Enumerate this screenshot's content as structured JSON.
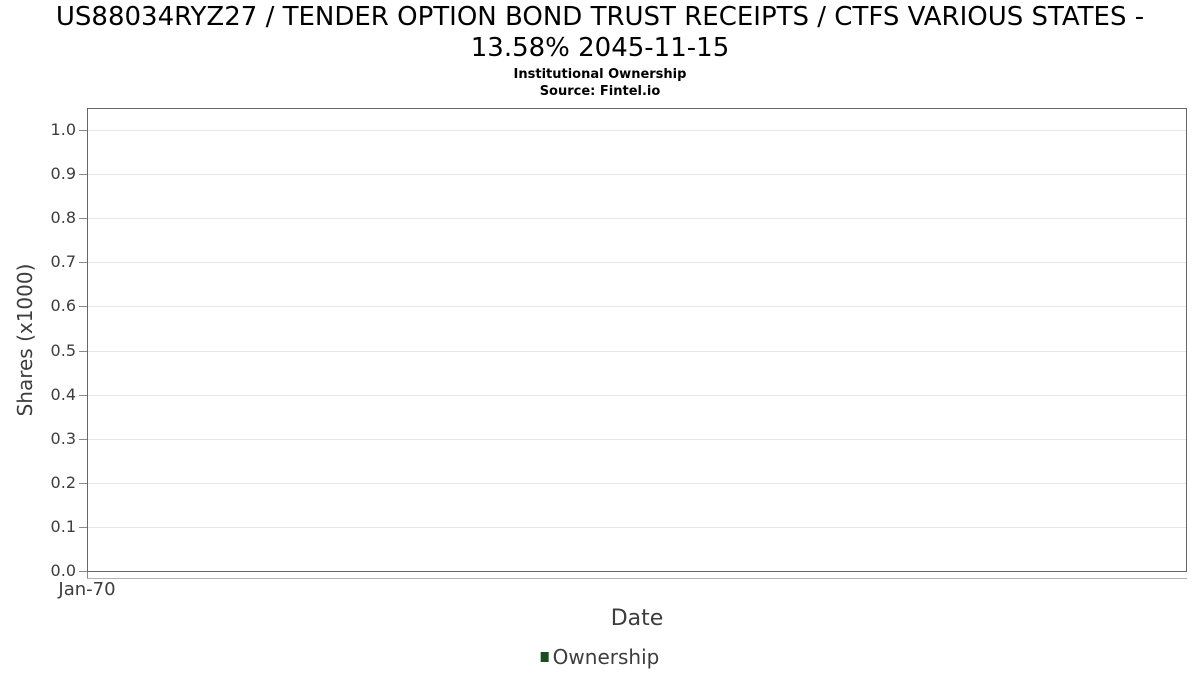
{
  "chart_data": {
    "type": "line",
    "title": "US88034RYZ27 / TENDER OPTION BOND TRUST RECEIPTS / CTFS VARIOUS STATES - 13.58% 2045-11-15",
    "title_lines": [
      "US88034RYZ27 / TENDER OPTION BOND TRUST RECEIPTS / CTFS VARIOUS STATES -",
      "13.58% 2045-11-15"
    ],
    "subtitle": "Institutional Ownership",
    "source": "Source: Fintel.io",
    "xlabel": "Date",
    "ylabel": "Shares (x1000)",
    "x_tick_labels": [
      "Jan-70"
    ],
    "y_tick_labels": [
      "0.0",
      "0.1",
      "0.2",
      "0.3",
      "0.4",
      "0.5",
      "0.6",
      "0.7",
      "0.8",
      "0.9",
      "1.0"
    ],
    "ylim": [
      0,
      1.05
    ],
    "grid": true,
    "legend_position": "bottom-center",
    "series": [
      {
        "name": "Ownership",
        "color": "#1a4f26",
        "x": [],
        "values": []
      }
    ]
  }
}
